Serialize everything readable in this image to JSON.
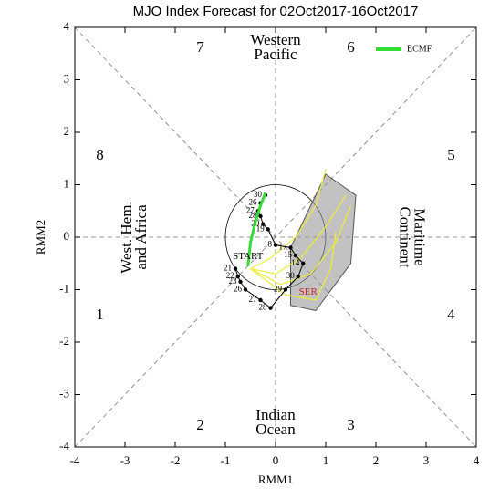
{
  "chart_data": {
    "type": "line",
    "title": "MJO Index Forecast for 02Oct2017-16Oct2017",
    "x_label": "RMM1",
    "y_label": "RMM2",
    "xlim": [
      -4,
      4
    ],
    "ylim": [
      -4,
      4
    ],
    "xticks": [
      -4,
      -3,
      -2,
      -1,
      0,
      1,
      2,
      3,
      4
    ],
    "yticks": [
      -4,
      -3,
      -2,
      -1,
      0,
      1,
      2,
      3,
      4
    ],
    "phase_labels": [
      "1",
      "2",
      "3",
      "4",
      "5",
      "6",
      "7",
      "8"
    ],
    "region_labels": [
      [
        "Western",
        "Pacific"
      ],
      [
        "Maritime",
        "Continent"
      ],
      [
        "Indian",
        "Ocean"
      ],
      [
        "West. Hem.",
        "and Africa"
      ]
    ],
    "series": [
      {
        "name": "ECMF",
        "color": "#33dd33",
        "x": [
          -0.55,
          -0.5,
          -0.4,
          -0.3,
          -0.2
        ],
        "y": [
          -0.55,
          -0.1,
          0.3,
          0.6,
          0.85
        ]
      }
    ],
    "observed": {
      "color": "#000000",
      "x": [
        -0.8,
        -0.75,
        -0.7,
        -0.6,
        -0.3,
        -0.1,
        0.2,
        0.45,
        0.55,
        0.4,
        0.3,
        0.0,
        -0.15,
        -0.25,
        -0.3,
        -0.35,
        -0.3,
        -0.2
      ],
      "y": [
        -0.6,
        -0.75,
        -0.85,
        -1.0,
        -1.2,
        -1.35,
        -1.0,
        -0.75,
        -0.5,
        -0.35,
        -0.2,
        -0.15,
        0.15,
        0.25,
        0.4,
        0.5,
        0.65,
        0.8
      ],
      "labels": [
        "21",
        "22",
        "23",
        "26",
        "27",
        "28",
        "29",
        "30",
        "14",
        "15",
        "17",
        "18",
        "19",
        "20",
        "28",
        "27",
        "26",
        "30"
      ]
    },
    "ensemble_color": "#eeee33",
    "ensemble": [
      {
        "x": [
          -0.5,
          0.0,
          0.5,
          1.0,
          1.4
        ],
        "y": [
          -0.6,
          -0.7,
          -0.4,
          0.2,
          0.8
        ]
      },
      {
        "x": [
          -0.5,
          0.1,
          0.7,
          1.2,
          1.5
        ],
        "y": [
          -0.6,
          -0.9,
          -0.7,
          -0.1,
          0.6
        ]
      },
      {
        "x": [
          -0.5,
          -0.1,
          0.4,
          0.8,
          1.0
        ],
        "y": [
          -0.6,
          -0.4,
          0.0,
          0.6,
          1.3
        ]
      },
      {
        "x": [
          -0.5,
          0.2,
          0.8,
          1.1,
          1.2
        ],
        "y": [
          -0.6,
          -1.1,
          -1.2,
          -0.6,
          0.1
        ]
      }
    ],
    "spread": {
      "color": "#999999",
      "x": [
        0.3,
        1.0,
        1.6,
        1.5,
        0.8,
        0.3
      ],
      "y": [
        -0.2,
        1.2,
        0.8,
        -0.5,
        -1.4,
        -1.3
      ]
    },
    "annotations": {
      "start": "START",
      "end": "SER"
    },
    "legend_position": "upper right"
  }
}
